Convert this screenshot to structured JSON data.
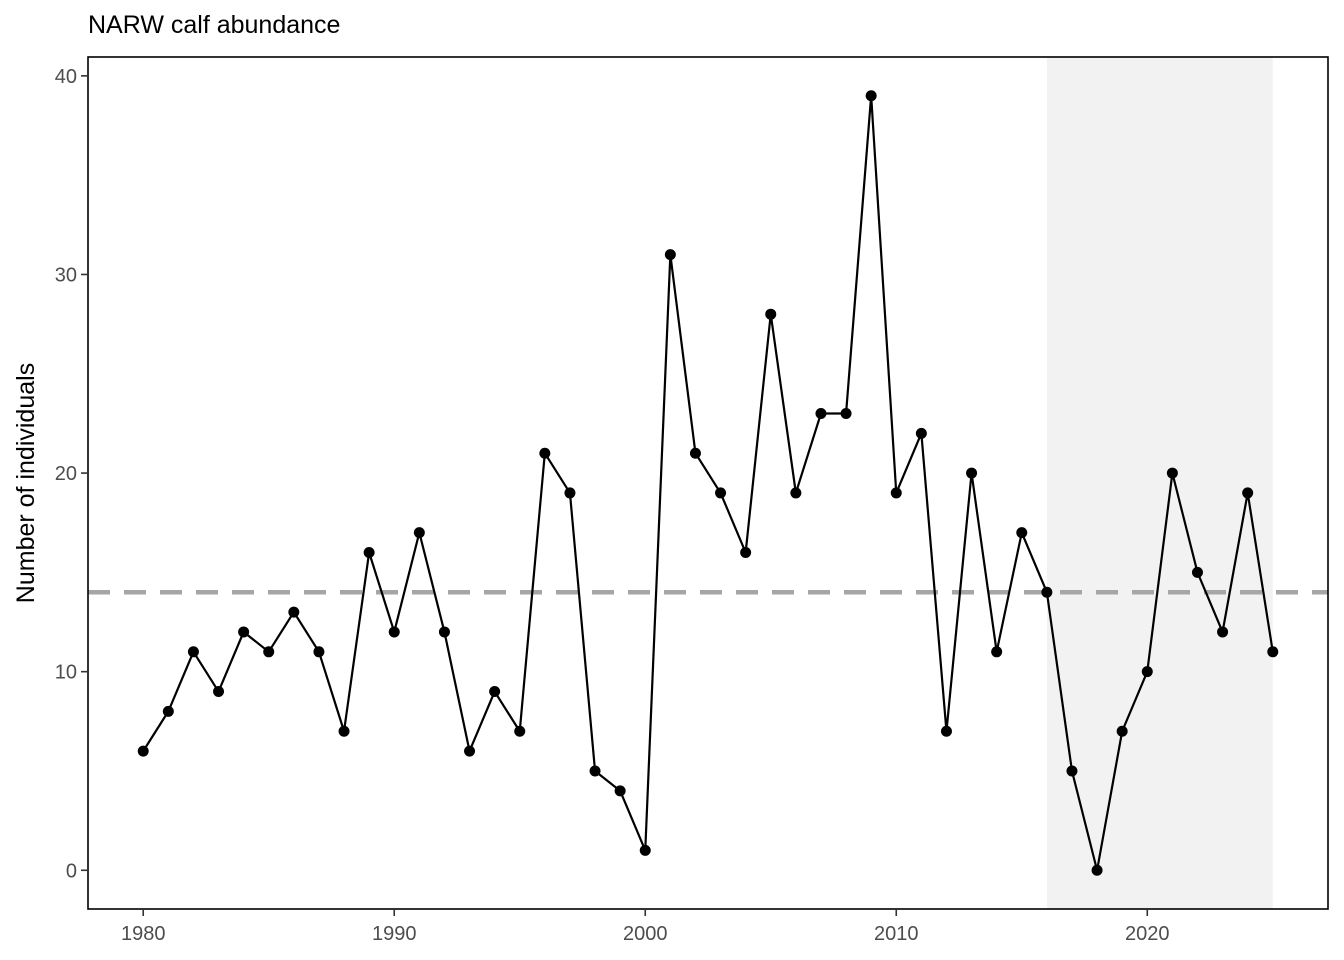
{
  "chart_data": {
    "type": "line",
    "title": "NARW calf abundance",
    "xlabel": "",
    "ylabel": "Number of individuals",
    "x": [
      1980,
      1981,
      1982,
      1983,
      1984,
      1985,
      1986,
      1987,
      1988,
      1989,
      1990,
      1991,
      1992,
      1993,
      1994,
      1995,
      1996,
      1997,
      1998,
      1999,
      2000,
      2001,
      2002,
      2003,
      2004,
      2005,
      2006,
      2007,
      2008,
      2009,
      2010,
      2011,
      2012,
      2013,
      2014,
      2015,
      2016,
      2017,
      2018,
      2019,
      2020,
      2021,
      2022,
      2023,
      2024,
      2025
    ],
    "values": [
      6,
      8,
      11,
      9,
      12,
      11,
      13,
      11,
      7,
      16,
      12,
      17,
      12,
      6,
      9,
      7,
      21,
      19,
      5,
      4,
      1,
      31,
      21,
      19,
      16,
      28,
      19,
      23,
      23,
      39,
      19,
      22,
      7,
      20,
      11,
      17,
      14,
      5,
      0,
      7,
      10,
      20,
      15,
      12,
      19,
      11
    ],
    "xlim": [
      1977.8,
      2027.2
    ],
    "ylim": [
      -1.95,
      40.95
    ],
    "xticks": [
      1980,
      1990,
      2000,
      2010,
      2020
    ],
    "yticks": [
      0,
      10,
      20,
      30,
      40
    ],
    "reference_line": {
      "y": 14,
      "style": "dashed",
      "color": "#a6a6a6"
    },
    "shaded_region": {
      "x_start": 2016,
      "x_end": 2025,
      "color": "#f2f2f2"
    },
    "line_color": "#000000",
    "point_color": "#000000",
    "grid": false,
    "legend": "none"
  }
}
